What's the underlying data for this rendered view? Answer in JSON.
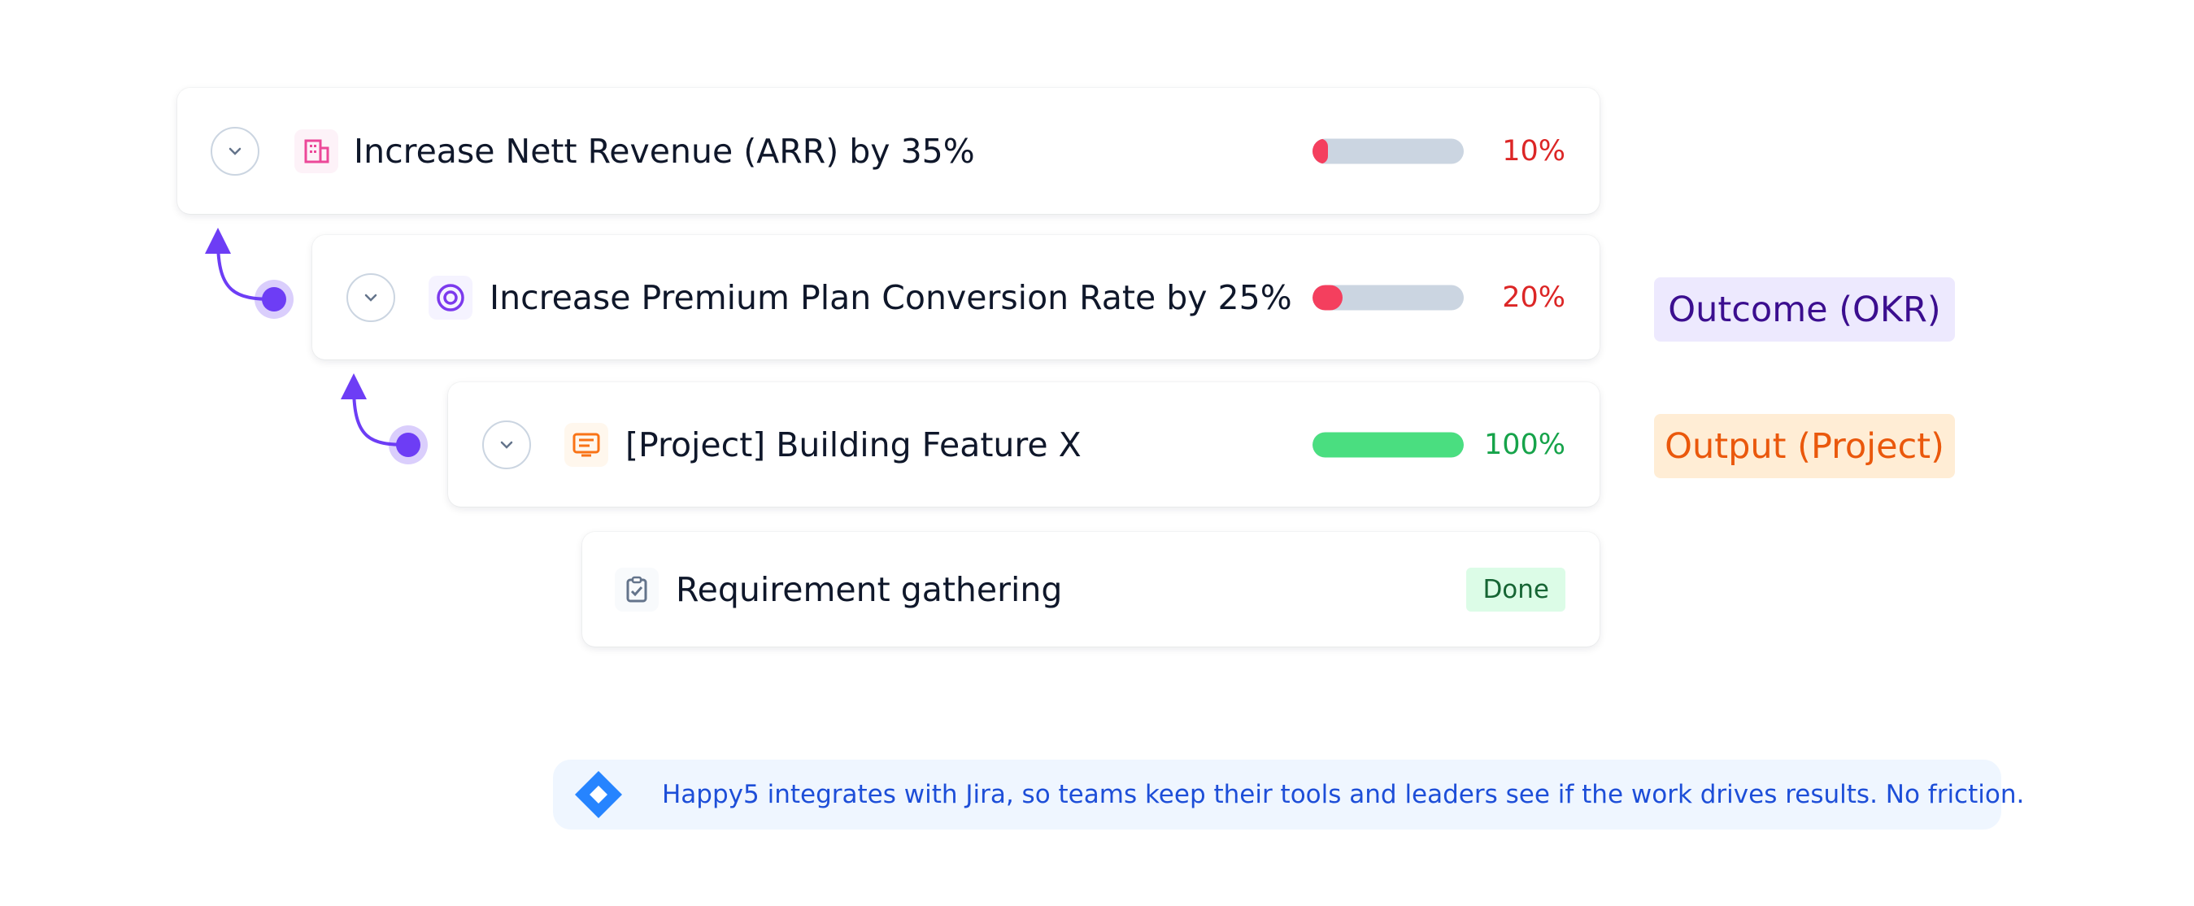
{
  "rows": [
    {
      "title": "Increase Nett Revenue (ARR) by 35%",
      "progress": 10,
      "progress_label": "10%"
    },
    {
      "title": "Increase Premium Plan Conversion Rate by 25%",
      "progress": 20,
      "progress_label": "20%"
    },
    {
      "title": "[Project] Building Feature X",
      "progress": 100,
      "progress_label": "100%"
    },
    {
      "title": "Requirement gathering",
      "status": "Done"
    }
  ],
  "tags": [
    "Outcome (OKR)",
    "Output (Project)"
  ],
  "banner": {
    "text": "Happy5 integrates with Jira, so teams keep their tools and leaders see if the work drives results. No friction."
  }
}
